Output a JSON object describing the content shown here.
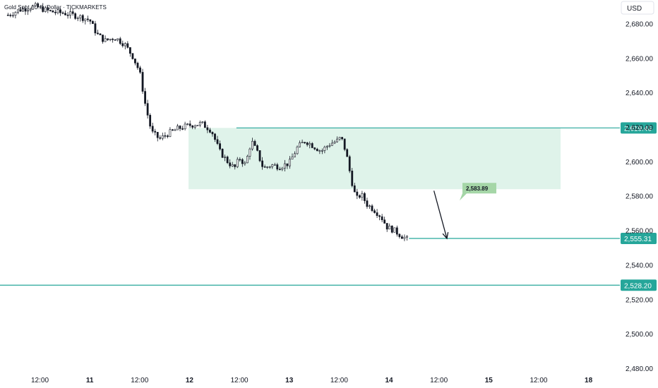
{
  "chart_data": {
    "type": "candlestick",
    "title": "Gold Spot / U.S. Dollar · TICKMARKETS",
    "currency": "USD",
    "ylim": [
      2480,
      2690
    ],
    "y_ticks": [
      2680,
      2660,
      2640,
      2620,
      2600,
      2580,
      2560,
      2540,
      2520,
      2500,
      2480
    ],
    "y_tick_labels": [
      "2,680.00",
      "2,660.00",
      "2,640.00",
      "2,620.00",
      "2,600.00",
      "2,580.00",
      "2,560.00",
      "2,540.00",
      "2,520.00",
      "2,500.00",
      "2,480.00"
    ],
    "x_ticks": [
      {
        "label": "12:00",
        "bold": false,
        "t": 0.5
      },
      {
        "label": "11",
        "bold": true,
        "t": 1.0
      },
      {
        "label": "12:00",
        "bold": false,
        "t": 1.5
      },
      {
        "label": "12",
        "bold": true,
        "t": 2.0
      },
      {
        "label": "12:00",
        "bold": false,
        "t": 2.5
      },
      {
        "label": "13",
        "bold": true,
        "t": 3.0
      },
      {
        "label": "12:00",
        "bold": false,
        "t": 3.5
      },
      {
        "label": "14",
        "bold": true,
        "t": 4.0
      },
      {
        "label": "12:00",
        "bold": false,
        "t": 4.5
      },
      {
        "label": "15",
        "bold": true,
        "t": 5.0
      },
      {
        "label": "12:00",
        "bold": false,
        "t": 5.5
      },
      {
        "label": "18",
        "bold": true,
        "t": 6.0
      }
    ],
    "xlim": [
      0.1,
      6.3
    ],
    "price_path": [
      [
        0.18,
        2685
      ],
      [
        0.3,
        2688
      ],
      [
        0.45,
        2690
      ],
      [
        0.6,
        2687
      ],
      [
        0.75,
        2686
      ],
      [
        0.9,
        2684
      ],
      [
        1.0,
        2682
      ],
      [
        1.07,
        2674
      ],
      [
        1.15,
        2670
      ],
      [
        1.25,
        2672
      ],
      [
        1.35,
        2668
      ],
      [
        1.43,
        2661
      ],
      [
        1.5,
        2652
      ],
      [
        1.56,
        2632
      ],
      [
        1.62,
        2617
      ],
      [
        1.7,
        2613
      ],
      [
        1.78,
        2616
      ],
      [
        1.88,
        2619
      ],
      [
        2.0,
        2621
      ],
      [
        2.12,
        2622
      ],
      [
        2.22,
        2618
      ],
      [
        2.3,
        2606
      ],
      [
        2.38,
        2600
      ],
      [
        2.45,
        2596
      ],
      [
        2.5,
        2602
      ],
      [
        2.56,
        2598
      ],
      [
        2.62,
        2612
      ],
      [
        2.68,
        2605
      ],
      [
        2.74,
        2596
      ],
      [
        2.82,
        2598
      ],
      [
        2.9,
        2597
      ],
      [
        3.0,
        2599
      ],
      [
        3.08,
        2608
      ],
      [
        3.16,
        2612
      ],
      [
        3.24,
        2609
      ],
      [
        3.32,
        2606
      ],
      [
        3.4,
        2610
      ],
      [
        3.48,
        2612
      ],
      [
        3.52,
        2614
      ],
      [
        3.57,
        2605
      ],
      [
        3.62,
        2590
      ],
      [
        3.67,
        2578
      ],
      [
        3.72,
        2581
      ],
      [
        3.78,
        2575
      ],
      [
        3.85,
        2572
      ],
      [
        3.92,
        2568
      ],
      [
        3.98,
        2562
      ],
      [
        4.05,
        2560
      ],
      [
        4.12,
        2557
      ],
      [
        4.18,
        2555
      ]
    ],
    "levels": [
      {
        "price": 2619.46,
        "label": "2,619.46",
        "t_start": 2.47
      },
      {
        "price": 2555.31,
        "label": "2,555.31",
        "t_start": 4.2
      },
      {
        "price": 2528.2,
        "label": "2,528.20",
        "t_start": 0.1
      }
    ],
    "zone": {
      "t_start": 1.99,
      "t_end": 5.72,
      "top": 2619.46,
      "bottom": 2583.89
    },
    "callout": {
      "label": "2,583.89",
      "price": 2583.89
    },
    "arrow": {
      "t_from": 4.45,
      "price_from": 2583,
      "t_to": 4.58,
      "price_to": 2555.31
    },
    "colors": {
      "level": "#26a69a",
      "zone": "#dff3ea",
      "callout": "#a5d6a7",
      "candle": "#131722",
      "arrow": "#131722"
    }
  }
}
